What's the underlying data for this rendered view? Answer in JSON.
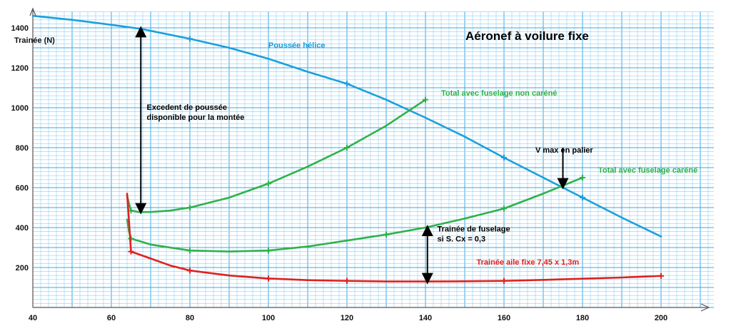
{
  "chart_data": {
    "type": "line",
    "title": "Aéronef à voilure fixe",
    "ylabel": "Trainée (N)",
    "xlabel": "",
    "xlim": [
      40,
      210
    ],
    "ylim": [
      0,
      1480
    ],
    "x_ticks": [
      "40",
      "60",
      "80",
      "100",
      "120",
      "140",
      "160",
      "180",
      "200"
    ],
    "y_ticks": [
      "200",
      "400",
      "600",
      "800",
      "1000",
      "1200",
      "1400"
    ],
    "grid": true,
    "colors": {
      "grid_major": "#39a9e6",
      "grid_minor": "#8fd0f3",
      "propeller": "#1aa0dd",
      "green": "#2db24a",
      "red": "#e02020",
      "annotation": "#000000"
    },
    "series": [
      {
        "name": "Poussée hélice",
        "color": "#1aa0dd",
        "x": [
          40,
          50,
          60,
          67.5,
          70,
          80,
          90,
          100,
          110,
          120,
          130,
          140,
          150,
          160,
          170,
          175,
          180,
          190,
          200
        ],
        "y": [
          1460,
          1440,
          1415,
          1395,
          1385,
          1345,
          1300,
          1245,
          1180,
          1120,
          1040,
          950,
          855,
          750,
          650,
          600,
          550,
          450,
          355
        ],
        "markers_at": [
          80,
          120,
          160,
          180
        ]
      },
      {
        "name": "Total avec fuselage non caréné",
        "color": "#2db24a",
        "x": [
          64,
          64.5,
          65,
          67,
          70,
          75,
          80,
          90,
          100,
          110,
          120,
          130,
          140
        ],
        "y": [
          560,
          520,
          485,
          478,
          478,
          485,
          500,
          550,
          620,
          705,
          800,
          910,
          1040
        ],
        "markers_at": [
          65,
          80,
          100,
          120,
          140
        ]
      },
      {
        "name": "Total avec fuselage caréné",
        "color": "#2db24a",
        "x": [
          64,
          64.5,
          65,
          70,
          80,
          90,
          100,
          110,
          120,
          130,
          140,
          150,
          160,
          170,
          180
        ],
        "y": [
          440,
          380,
          345,
          315,
          285,
          280,
          285,
          305,
          335,
          365,
          400,
          445,
          495,
          570,
          650
        ],
        "markers_at": [
          65,
          80,
          100,
          130,
          160,
          180
        ]
      },
      {
        "name": "Trainée aile fixe 7,45  x 1,3m",
        "color": "#e02020",
        "x": [
          64,
          64.5,
          65,
          70,
          75,
          80,
          90,
          100,
          110,
          120,
          130,
          140,
          150,
          160,
          170,
          180,
          190,
          200
        ],
        "y": [
          570,
          430,
          280,
          245,
          210,
          185,
          160,
          145,
          137,
          133,
          130,
          130,
          131,
          133,
          138,
          144,
          150,
          158
        ],
        "markers_at": [
          65,
          80,
          100,
          120,
          160,
          200
        ]
      }
    ],
    "series_labels": [
      {
        "text": "Poussée hélice",
        "color": "#1aa0dd",
        "x": 100,
        "y": 1300
      },
      {
        "text": "Total avec fuselage non caréné",
        "color": "#2db24a",
        "x": 144,
        "y": 1060
      },
      {
        "text": "Total avec fuselage caréné",
        "color": "#2db24a",
        "x": 184,
        "y": 675
      },
      {
        "text": "Trainée aile fixe 7,45  x 1,3m",
        "color": "#e02020",
        "x": 153,
        "y": 215
      }
    ],
    "annotations": [
      {
        "lines": [
          "Excedent de poussée",
          "disponible pour la montée"
        ],
        "x": 69,
        "y": 990
      },
      {
        "lines": [
          "V max en palier"
        ],
        "x": 168,
        "y": 775
      },
      {
        "lines": [
          "Trainée de fuselage",
          "si S. Cx = 0,3"
        ],
        "x": 143,
        "y": 380
      }
    ],
    "arrows": [
      {
        "x": 67.5,
        "y_from": 480,
        "y_to": 1395
      },
      {
        "x": 140.5,
        "y_from": 130,
        "y_to": 400
      },
      {
        "x": 175,
        "y_from": 800,
        "y_to": 605
      }
    ]
  }
}
